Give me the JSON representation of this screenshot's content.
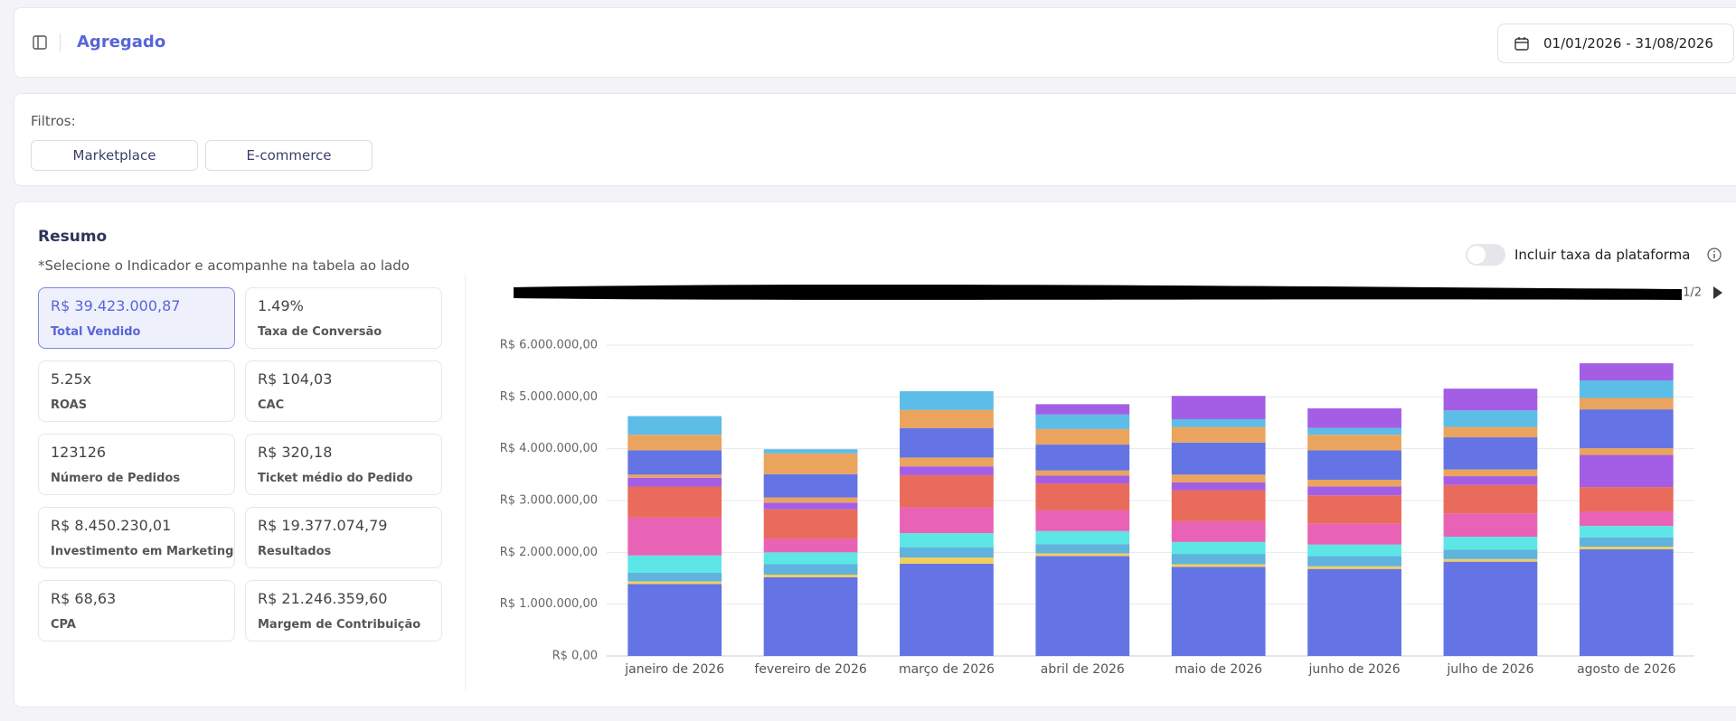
{
  "header": {
    "title": "Agregado",
    "date_range": "01/01/2026 - 31/08/2026"
  },
  "filters": {
    "label": "Filtros:",
    "options": [
      "Marketplace",
      "E-commerce"
    ]
  },
  "summary": {
    "title": "Resumo",
    "subtitle": "*Selecione o Indicador e acompanhe na tabela ao lado",
    "cards": [
      {
        "value": "R$ 39.423.000,87",
        "label": "Total Vendido"
      },
      {
        "value": "1.49%",
        "label": "Taxa de Conversão"
      },
      {
        "value": "5.25x",
        "label": "ROAS"
      },
      {
        "value": "R$ 104,03",
        "label": "CAC"
      },
      {
        "value": "123126",
        "label": "Número de Pedidos"
      },
      {
        "value": "R$ 320,18",
        "label": "Ticket médio do Pedido"
      },
      {
        "value": "R$ 8.450.230,01",
        "label": "Investimento em Marketing"
      },
      {
        "value": "R$ 19.377.074,79",
        "label": "Resultados"
      },
      {
        "value": "R$ 68,63",
        "label": "CPA"
      },
      {
        "value": "R$ 21.246.359,60",
        "label": "Margem de Contribuição"
      }
    ]
  },
  "toggle_label": "Incluir taxa da plataforma",
  "chart_data": {
    "type": "bar",
    "stacked": true,
    "legend_page": "1/2",
    "categories": [
      "janeiro de 2026",
      "fevereiro de 2026",
      "março de 2026",
      "abril de 2026",
      "maio de 2026",
      "junho de 2026",
      "julho de 2026",
      "agosto de 2026"
    ],
    "ylim": [
      0,
      6000000
    ],
    "yticks": [
      {
        "value": 0,
        "label": "R$ 0,00"
      },
      {
        "value": 1000000,
        "label": "R$ 1.000.000,00"
      },
      {
        "value": 2000000,
        "label": "R$ 2.000.000,00"
      },
      {
        "value": 3000000,
        "label": "R$ 3.000.000,00"
      },
      {
        "value": 4000000,
        "label": "R$ 4.000.000,00"
      },
      {
        "value": 5000000,
        "label": "R$ 5.000.000,00"
      },
      {
        "value": 6000000,
        "label": "R$ 6.000.000,00"
      }
    ],
    "grid": true,
    "series": [
      {
        "color": "#6474e5",
        "values": [
          1390000,
          1520000,
          1780000,
          1930000,
          1720000,
          1680000,
          1820000,
          2060000
        ]
      },
      {
        "color": "#f2cf5b",
        "values": [
          50000,
          50000,
          120000,
          50000,
          50000,
          50000,
          50000,
          50000
        ]
      },
      {
        "color": "#5fb3dd",
        "values": [
          170000,
          200000,
          200000,
          180000,
          200000,
          200000,
          180000,
          180000
        ]
      },
      {
        "color": "#5de6e6",
        "values": [
          330000,
          230000,
          270000,
          250000,
          230000,
          220000,
          250000,
          220000
        ]
      },
      {
        "color": "#e863b5",
        "values": [
          730000,
          260000,
          500000,
          400000,
          400000,
          400000,
          450000,
          280000
        ]
      },
      {
        "color": "#e96b5c",
        "values": [
          600000,
          570000,
          620000,
          520000,
          600000,
          550000,
          550000,
          470000
        ]
      },
      {
        "color": "#a45ee5",
        "values": [
          170000,
          130000,
          170000,
          150000,
          150000,
          170000,
          170000,
          620000
        ]
      },
      {
        "color": "#eba45e",
        "values": [
          60000,
          100000,
          170000,
          100000,
          150000,
          130000,
          130000,
          130000
        ]
      },
      {
        "color": "#6474e5",
        "values": [
          470000,
          450000,
          570000,
          500000,
          620000,
          570000,
          620000,
          750000
        ]
      },
      {
        "color": "#eba45e",
        "values": [
          300000,
          400000,
          350000,
          300000,
          300000,
          300000,
          200000,
          220000
        ]
      },
      {
        "color": "#5cbde6",
        "values": [
          360000,
          80000,
          360000,
          280000,
          150000,
          130000,
          320000,
          340000
        ]
      },
      {
        "color": "#a45ee5",
        "values": [
          0,
          0,
          0,
          200000,
          450000,
          380000,
          420000,
          330000
        ]
      }
    ]
  }
}
